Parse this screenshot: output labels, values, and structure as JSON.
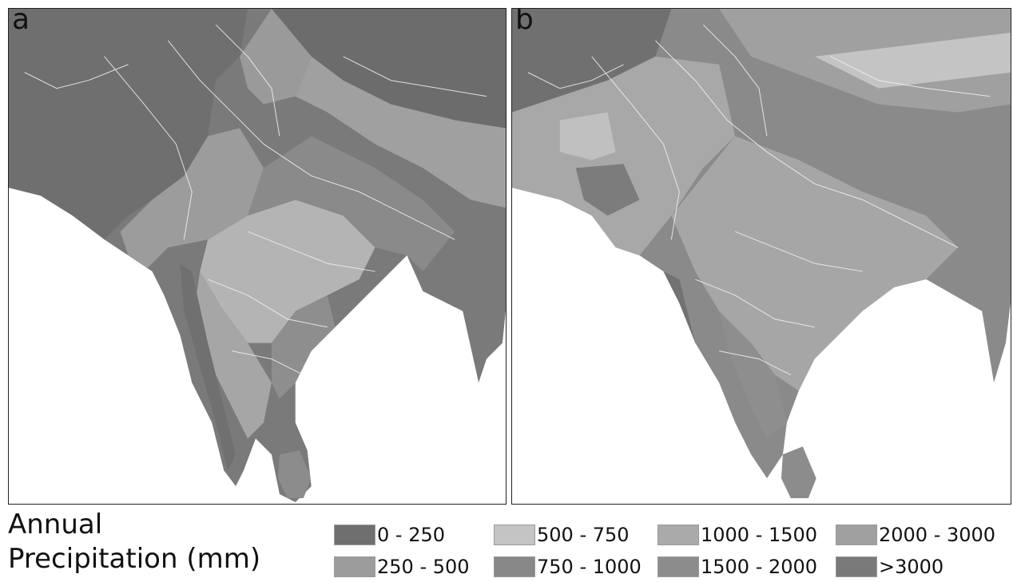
{
  "panels": [
    {
      "id": "a",
      "label": "a"
    },
    {
      "id": "b",
      "label": "b"
    }
  ],
  "legend": {
    "title_line1": "Annual",
    "title_line2": "Precipitation (mm)",
    "items": [
      {
        "label": "0 - 250",
        "color": "#6f6f6f"
      },
      {
        "label": "250 - 500",
        "color": "#9c9c9c"
      },
      {
        "label": "500 - 750",
        "color": "#c4c4c4"
      },
      {
        "label": "750 - 1000",
        "color": "#888888"
      },
      {
        "label": "1000 - 1500",
        "color": "#aaaaaa"
      },
      {
        "label": "1500 - 2000",
        "color": "#8c8c8c"
      },
      {
        "label": "2000 - 3000",
        "color": "#a0a0a0"
      },
      {
        "label": ">3000",
        "color": "#7a7a7a"
      }
    ]
  },
  "colors": {
    "ocean": "#ffffff",
    "dry_land": "#707070",
    "river": "#f4f4f4",
    "frame": "#222222"
  }
}
